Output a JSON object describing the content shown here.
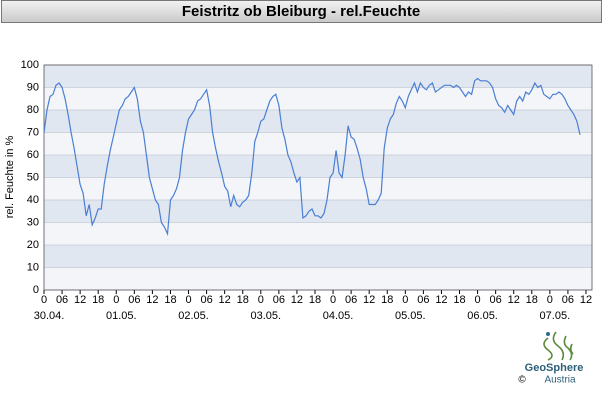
{
  "chart_data": {
    "type": "line",
    "title": "Feistritz ob Bleiburg - rel.Feuchte",
    "y_label": "rel. Feuchte in %",
    "grid": true,
    "xlim": [
      0,
      182
    ],
    "ylim": [
      0,
      100
    ],
    "yticks": [
      0,
      10,
      20,
      30,
      40,
      50,
      60,
      70,
      80,
      90,
      100
    ],
    "xticks": [
      0,
      {
        "value": 6,
        "label": "06"
      },
      {
        "value": 12,
        "label": "12"
      },
      {
        "value": 18,
        "label": "18"
      },
      {
        "value": 24,
        "label": "0"
      },
      {
        "value": 30,
        "label": "06"
      },
      {
        "value": 36,
        "label": "12"
      },
      {
        "value": 42,
        "label": "18"
      },
      {
        "value": 48,
        "label": "0"
      },
      {
        "value": 54,
        "label": "06"
      },
      {
        "value": 60,
        "label": "12"
      },
      {
        "value": 66,
        "label": "18"
      },
      {
        "value": 72,
        "label": "0"
      },
      {
        "value": 78,
        "label": "06"
      },
      {
        "value": 84,
        "label": "12"
      },
      {
        "value": 90,
        "label": "18"
      },
      {
        "value": 96,
        "label": "0"
      },
      {
        "value": 102,
        "label": "06"
      },
      {
        "value": 108,
        "label": "12"
      },
      {
        "value": 114,
        "label": "18"
      },
      {
        "value": 120,
        "label": "0"
      },
      {
        "value": 126,
        "label": "06"
      },
      {
        "value": 132,
        "label": "12"
      },
      {
        "value": 138,
        "label": "18"
      },
      {
        "value": 144,
        "label": "0"
      },
      {
        "value": 150,
        "label": "06"
      },
      {
        "value": 156,
        "label": "12"
      },
      {
        "value": 162,
        "label": "18"
      },
      {
        "value": 168,
        "label": "0"
      },
      {
        "value": 174,
        "label": "06"
      },
      {
        "value": 180,
        "label": "12"
      }
    ],
    "day_labels": [
      {
        "value": 0,
        "label": "30.04."
      },
      {
        "value": 24,
        "label": "01.05."
      },
      {
        "value": 48,
        "label": "02.05."
      },
      {
        "value": 72,
        "label": "03.05."
      },
      {
        "value": 96,
        "label": "04.05."
      },
      {
        "value": 120,
        "label": "05.05."
      },
      {
        "value": 144,
        "label": "06.05."
      },
      {
        "value": 168,
        "label": "07.05."
      }
    ],
    "x": [
      0,
      1,
      2,
      3,
      4,
      5,
      6,
      7,
      8,
      9,
      10,
      11,
      12,
      13,
      14,
      15,
      16,
      17,
      18,
      19,
      20,
      21,
      22,
      23,
      24,
      25,
      26,
      27,
      28,
      29,
      30,
      31,
      32,
      33,
      34,
      35,
      36,
      37,
      38,
      39,
      40,
      41,
      42,
      43,
      44,
      45,
      46,
      47,
      48,
      49,
      50,
      51,
      52,
      53,
      54,
      55,
      56,
      57,
      58,
      59,
      60,
      61,
      62,
      63,
      64,
      65,
      66,
      67,
      68,
      69,
      70,
      71,
      72,
      73,
      74,
      75,
      76,
      77,
      78,
      79,
      80,
      81,
      82,
      83,
      84,
      85,
      86,
      87,
      88,
      89,
      90,
      91,
      92,
      93,
      94,
      95,
      96,
      97,
      98,
      99,
      100,
      101,
      102,
      103,
      104,
      105,
      106,
      107,
      108,
      109,
      110,
      111,
      112,
      113,
      114,
      115,
      116,
      117,
      118,
      119,
      120,
      121,
      122,
      123,
      124,
      125,
      126,
      127,
      128,
      129,
      130,
      131,
      132,
      133,
      134,
      135,
      136,
      137,
      138,
      139,
      140,
      141,
      142,
      143,
      144,
      145,
      146,
      147,
      148,
      149,
      150,
      151,
      152,
      153,
      154,
      155,
      156,
      157,
      158,
      159,
      160,
      161,
      162,
      163,
      164,
      165,
      166,
      167,
      168,
      169,
      170,
      171,
      172,
      173,
      174,
      175,
      176,
      177,
      178
    ],
    "series": [
      {
        "color": "#4a7fd4",
        "values": [
          70,
          80,
          86,
          87,
          91,
          92,
          90,
          85,
          78,
          70,
          63,
          55,
          47,
          43,
          33,
          38,
          29,
          32,
          36,
          36,
          47,
          55,
          62,
          68,
          74,
          80,
          82,
          85,
          86,
          88,
          90,
          85,
          75,
          70,
          60,
          50,
          45,
          40,
          38,
          30,
          28,
          25,
          40,
          42,
          45,
          50,
          62,
          70,
          76,
          78,
          80,
          84,
          85,
          87,
          89,
          82,
          70,
          63,
          57,
          52,
          46,
          44,
          37,
          42,
          38,
          37,
          39,
          40,
          42,
          52,
          66,
          70,
          75,
          76,
          80,
          84,
          86,
          87,
          82,
          72,
          67,
          60,
          57,
          52,
          48,
          50,
          32,
          33,
          35,
          36,
          33,
          33,
          32,
          34,
          40,
          50,
          52,
          62,
          52,
          50,
          60,
          73,
          68,
          67,
          63,
          58,
          50,
          45,
          38,
          38,
          38,
          40,
          43,
          63,
          72,
          76,
          78,
          83,
          86,
          84,
          81,
          86,
          89,
          92,
          88,
          92,
          90,
          89,
          91,
          92,
          88,
          89,
          90,
          91,
          91,
          91,
          90,
          91,
          90,
          88,
          86,
          88,
          87,
          93,
          94,
          93,
          93,
          93,
          92,
          90,
          85,
          82,
          81,
          79,
          82,
          80,
          78,
          84,
          86,
          84,
          88,
          87,
          89,
          92,
          90,
          91,
          87,
          86,
          85,
          87,
          87,
          88,
          87,
          85,
          82,
          80,
          78,
          75,
          69
        ]
      }
    ]
  },
  "logo": {
    "name": "GeoSphere",
    "sub": "Austria",
    "copyright": "©"
  }
}
